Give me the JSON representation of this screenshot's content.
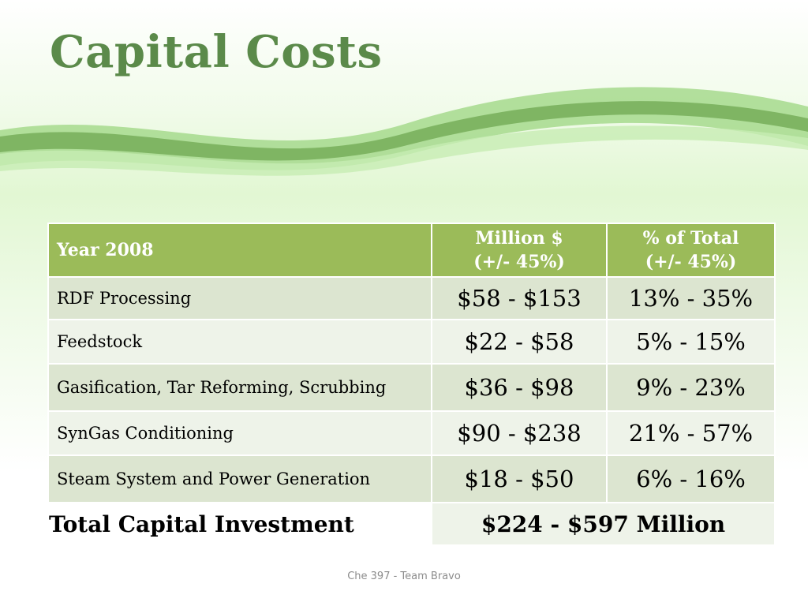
{
  "slide": {
    "title": "Capital Costs",
    "footer": "Che 397 - Team Bravo"
  },
  "table": {
    "header": {
      "col1": "Year 2008",
      "col2_line1": "Million $",
      "col2_line2": "(+/- 45%)",
      "col3_line1": "% of Total",
      "col3_line2": "(+/- 45%)"
    },
    "rows": [
      {
        "item": "RDF Processing",
        "million": "$58 - $153",
        "percent": "13% - 35%"
      },
      {
        "item": "Feedstock",
        "million": "$22 - $58",
        "percent": "5% - 15%"
      },
      {
        "item": "Gasification, Tar Reforming, Scrubbing",
        "million": "$36 - $98",
        "percent": "9% - 23%"
      },
      {
        "item": "SynGas Conditioning",
        "million": "$90 - $238",
        "percent": "21% - 57%"
      },
      {
        "item": "Steam System and Power Generation",
        "million": "$18 - $50",
        "percent": "6% - 16%"
      }
    ],
    "total": {
      "label": "Total Capital Investment",
      "value": "$224 - $597 Million"
    }
  },
  "colors": {
    "title": "#5b8a4a",
    "header_bg": "#9bbb59",
    "row_dark": "#dce5d0",
    "row_light": "#eef3e9",
    "wave_light": "#a6d98d",
    "wave_dark": "#7fb563"
  }
}
